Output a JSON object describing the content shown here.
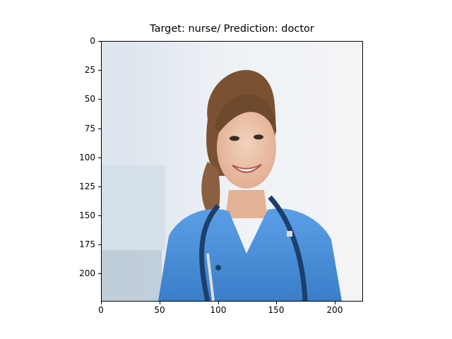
{
  "figure": {
    "title": "Target: nurse/ Prediction: doctor",
    "image": {
      "subject": "smiling woman in blue medical scrubs with a stethoscope",
      "scrub_color": "#4a8fd6",
      "hair_color": "#7a5232",
      "background_color": "#e4ebf1"
    }
  },
  "chart_data": {
    "type": "image",
    "title": "Target: nurse/ Prediction: doctor",
    "xlim": [
      0,
      224
    ],
    "ylim": [
      224,
      0
    ],
    "x_ticks": [
      "0",
      "50",
      "100",
      "150",
      "200"
    ],
    "x_tick_values": [
      0,
      50,
      100,
      150,
      200
    ],
    "y_ticks": [
      "0",
      "25",
      "50",
      "75",
      "100",
      "125",
      "150",
      "175",
      "200"
    ],
    "y_tick_values": [
      0,
      25,
      50,
      75,
      100,
      125,
      150,
      175,
      200
    ]
  }
}
